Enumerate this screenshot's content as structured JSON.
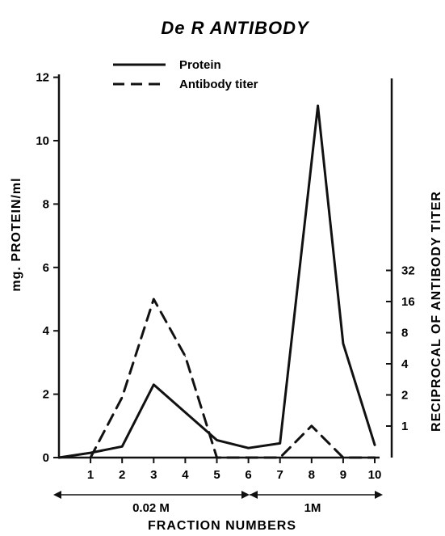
{
  "chart_data": {
    "type": "line",
    "title": "De R ANTIBODY",
    "xlabel": "FRACTION NUMBERS",
    "ylabel": "mg. PROTEIN/ml",
    "y2label": "RECIPROCAL OF ANTIBODY TITER",
    "x_ticks": [
      "1",
      "2",
      "3",
      "4",
      "5",
      "6",
      "7",
      "8",
      "9",
      "10"
    ],
    "y_ticks": [
      "0",
      "2",
      "4",
      "6",
      "8",
      "10",
      "12"
    ],
    "y2_ticks": [
      "1",
      "2",
      "4",
      "8",
      "16",
      "32"
    ],
    "y2_scale": "log2",
    "xlim": [
      0,
      10
    ],
    "ylim": [
      0,
      12
    ],
    "legend_position": "top-left",
    "series": [
      {
        "name": "Protein",
        "axis": "left",
        "style": "solid",
        "x": [
          0,
          1,
          2,
          3,
          5,
          6,
          7,
          8.2,
          9,
          10
        ],
        "y": [
          0,
          0.15,
          0.35,
          2.3,
          0.55,
          0.3,
          0.45,
          11.1,
          3.6,
          0.4
        ]
      },
      {
        "name": "Antibody titer",
        "axis": "left",
        "style": "dashed",
        "x": [
          1,
          2,
          3,
          4,
          5,
          6,
          7,
          8,
          9,
          10
        ],
        "y": [
          0,
          1.9,
          5.0,
          3.2,
          0,
          0,
          0,
          1.0,
          0,
          0
        ]
      }
    ],
    "x_annotations": [
      {
        "label": "0.02 M",
        "from": 0,
        "to": 6
      },
      {
        "label": "1M",
        "from": 6,
        "to": 10
      }
    ]
  }
}
